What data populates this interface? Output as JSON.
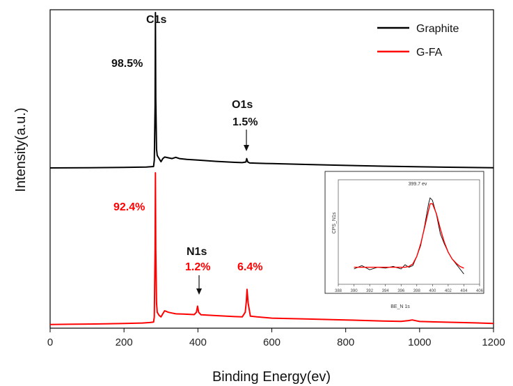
{
  "chart_data": {
    "type": "line",
    "xlabel": "Binding Energy(ev)",
    "ylabel": "Intensity(a.u.)",
    "xlim": [
      0,
      1200
    ],
    "xticks": [
      0,
      200,
      400,
      600,
      800,
      1000,
      1200
    ],
    "y_ticks_shown": false,
    "legend": {
      "placement": "top-right",
      "entries": [
        "Graphite",
        "G-FA"
      ]
    },
    "series": [
      {
        "name": "Graphite",
        "color": "#000000",
        "x": [
          0,
          100,
          200,
          260,
          280,
          282,
          284,
          285,
          286,
          288,
          290,
          295,
          300,
          305,
          310,
          320,
          330,
          340,
          350,
          370,
          400,
          450,
          500,
          520,
          530,
          532,
          535,
          540,
          560,
          600,
          700,
          800,
          900,
          1000,
          1100,
          1200
        ],
        "values": [
          0.0,
          0.1,
          0.3,
          0.6,
          0.9,
          5,
          40,
          100,
          45,
          12,
          8,
          6,
          4,
          6,
          7,
          6.5,
          6,
          6.8,
          6,
          5.5,
          5,
          4.2,
          3.6,
          3.4,
          3.8,
          6.0,
          3.8,
          3.2,
          3.0,
          2.8,
          2.2,
          1.6,
          1.1,
          0.7,
          0.4,
          0.1
        ]
      },
      {
        "name": "G-FA",
        "color": "#ff0000",
        "x": [
          0,
          50,
          100,
          150,
          200,
          250,
          270,
          280,
          282,
          284,
          285,
          286,
          288,
          290,
          295,
          300,
          305,
          310,
          320,
          330,
          340,
          360,
          390,
          396,
          399,
          402,
          408,
          450,
          500,
          520,
          528,
          531,
          533,
          536,
          542,
          560,
          600,
          700,
          800,
          900,
          950,
          970,
          980,
          990,
          1000,
          1050,
          1100,
          1150,
          1200
        ],
        "values": [
          1.0,
          1.2,
          1.3,
          1.5,
          1.7,
          2.0,
          2.3,
          2.6,
          6,
          50,
          100,
          50,
          15,
          9,
          7,
          6,
          8,
          10,
          9,
          8.5,
          8,
          7.8,
          7.5,
          9,
          13,
          9,
          7.4,
          6.8,
          6.2,
          6,
          9,
          16,
          24,
          15,
          6.5,
          6,
          5.2,
          4.6,
          4.0,
          3.3,
          3.1,
          3.6,
          4.0,
          3.5,
          3.0,
          2.7,
          2.4,
          2.1,
          1.7
        ]
      }
    ],
    "annotations": {
      "c1s": "C1s",
      "graphite_c": "98.5%",
      "o1s": "O1s",
      "graphite_o": "1.5%",
      "gfa_c": "92.4%",
      "n1s": "N1s",
      "gfa_n": "1.2%",
      "gfa_o": "6.4%"
    },
    "inset": {
      "type": "line",
      "annotation": "399.7 ev",
      "xlabel": "BE_N 1s",
      "ylabel": "CPS_N1s",
      "xlim": [
        388,
        406
      ],
      "xticks": [
        388,
        390,
        392,
        394,
        396,
        398,
        400,
        402,
        404,
        406
      ],
      "series": [
        {
          "name": "data",
          "color": "#000000",
          "x": [
            390,
            391,
            392,
            393,
            394,
            395,
            396,
            396.5,
            397,
            397.5,
            398,
            398.5,
            399,
            399.5,
            399.7,
            400,
            400.5,
            401,
            401.5,
            402,
            402.5,
            403,
            403.5,
            404
          ],
          "values": [
            0.1,
            0.14,
            0.09,
            0.12,
            0.11,
            0.13,
            0.1,
            0.15,
            0.12,
            0.14,
            0.25,
            0.38,
            0.62,
            0.88,
            0.95,
            0.92,
            0.75,
            0.52,
            0.4,
            0.3,
            0.22,
            0.16,
            0.1,
            0.04
          ]
        },
        {
          "name": "fit",
          "color": "#ff0000",
          "x": [
            390,
            391,
            392,
            393,
            394,
            395,
            396,
            396.5,
            397,
            397.5,
            398,
            398.5,
            399,
            399.5,
            399.7,
            400,
            400.5,
            401,
            401.5,
            402,
            402.5,
            403,
            403.5,
            404
          ],
          "values": [
            0.12,
            0.12,
            0.12,
            0.12,
            0.12,
            0.12,
            0.12,
            0.12,
            0.13,
            0.16,
            0.25,
            0.4,
            0.6,
            0.8,
            0.88,
            0.88,
            0.76,
            0.58,
            0.42,
            0.3,
            0.22,
            0.17,
            0.13,
            0.11
          ]
        }
      ]
    }
  }
}
